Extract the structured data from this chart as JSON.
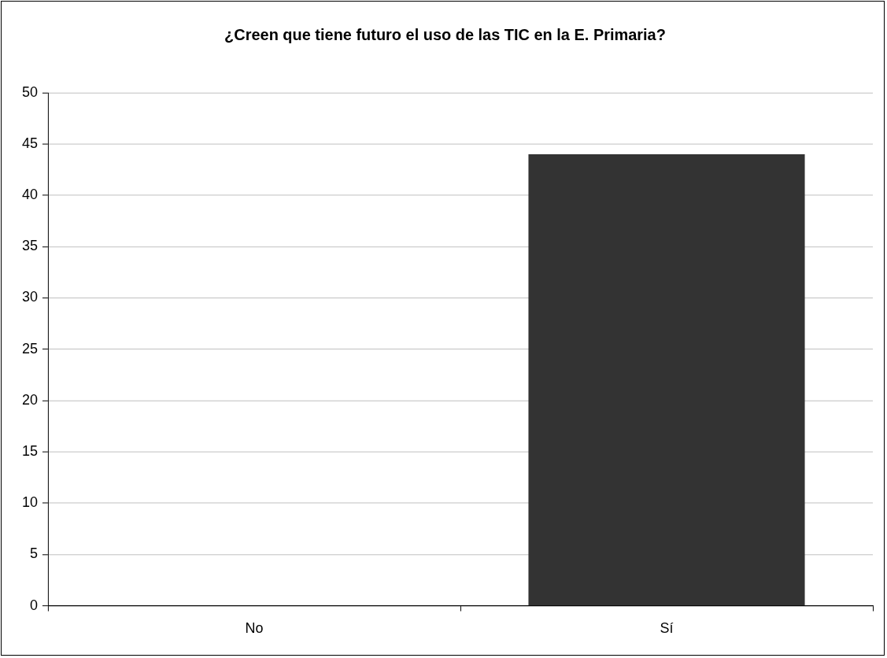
{
  "chart_data": {
    "type": "bar",
    "title": "¿Creen que tiene futuro el uso de las TIC en la E. Primaria?",
    "categories": [
      "No",
      "Sí"
    ],
    "values": [
      0,
      44
    ],
    "color": "#333333",
    "ylim": [
      0,
      50
    ],
    "yticks": [
      0,
      5,
      10,
      15,
      20,
      25,
      30,
      35,
      40,
      45,
      50
    ],
    "grid": "y",
    "legend": false
  }
}
